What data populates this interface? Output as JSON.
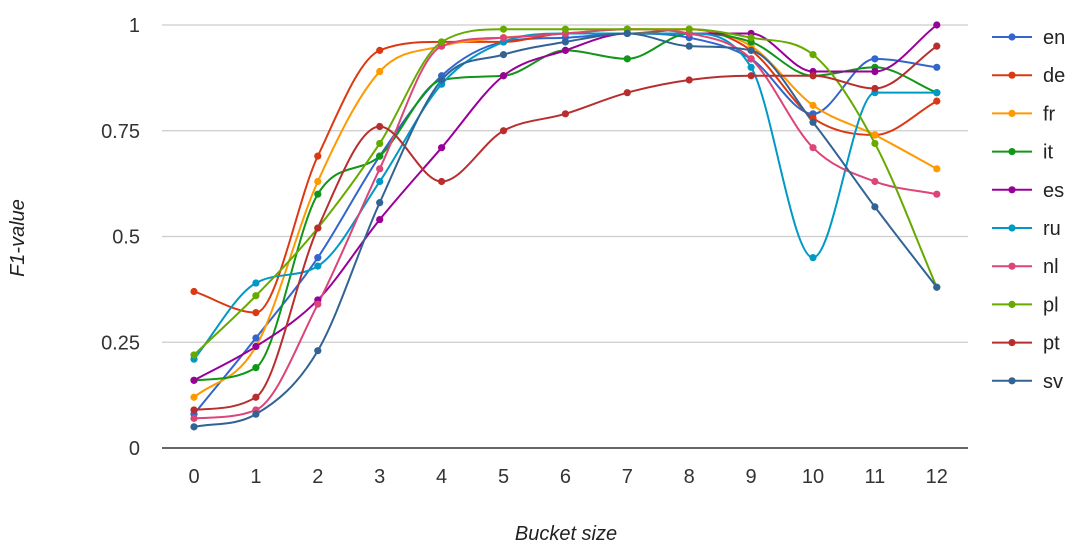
{
  "chart_data": {
    "type": "line",
    "title": "",
    "xlabel": "Bucket size",
    "ylabel": "F1-value",
    "x": [
      0,
      1,
      2,
      3,
      4,
      5,
      6,
      7,
      8,
      9,
      10,
      11,
      12
    ],
    "x_tick_labels": [
      "0",
      "1",
      "2",
      "3",
      "4",
      "5",
      "6",
      "7",
      "8",
      "9",
      "10",
      "11",
      "12"
    ],
    "y_ticks": [
      0,
      0.25,
      0.5,
      0.75,
      1
    ],
    "y_tick_labels": [
      "0",
      "0.25",
      "0.5",
      "0.75",
      "1"
    ],
    "ylim": [
      0,
      1
    ],
    "grid": true,
    "legend_position": "right",
    "series": [
      {
        "name": "en",
        "color": "#3366cc",
        "values": [
          0.08,
          0.26,
          0.45,
          0.69,
          0.88,
          0.96,
          0.97,
          0.98,
          0.97,
          0.92,
          0.79,
          0.92,
          0.9
        ]
      },
      {
        "name": "de",
        "color": "#dc3912",
        "values": [
          0.37,
          0.32,
          0.69,
          0.94,
          0.96,
          0.96,
          0.98,
          0.98,
          0.99,
          0.94,
          0.78,
          0.74,
          0.82
        ]
      },
      {
        "name": "fr",
        "color": "#ff9900",
        "values": [
          0.12,
          0.24,
          0.63,
          0.89,
          0.95,
          0.97,
          0.98,
          0.99,
          0.99,
          0.95,
          0.81,
          0.74,
          0.66
        ]
      },
      {
        "name": "it",
        "color": "#109618",
        "values": [
          0.16,
          0.19,
          0.6,
          0.69,
          0.87,
          0.88,
          0.94,
          0.92,
          0.98,
          0.96,
          0.88,
          0.9,
          0.84
        ]
      },
      {
        "name": "es",
        "color": "#990099",
        "values": [
          0.16,
          0.24,
          0.35,
          0.54,
          0.71,
          0.88,
          0.94,
          0.98,
          0.98,
          0.98,
          0.89,
          0.89,
          1.0
        ]
      },
      {
        "name": "ru",
        "color": "#0099c6",
        "values": [
          0.21,
          0.39,
          0.43,
          0.63,
          0.86,
          0.96,
          0.98,
          0.98,
          0.98,
          0.9,
          0.45,
          0.84,
          0.84
        ]
      },
      {
        "name": "nl",
        "color": "#dd4477",
        "values": [
          0.07,
          0.09,
          0.34,
          0.66,
          0.95,
          0.97,
          0.98,
          0.99,
          0.98,
          0.92,
          0.71,
          0.63,
          0.6
        ]
      },
      {
        "name": "pl",
        "color": "#66aa00",
        "values": [
          0.22,
          0.36,
          0.52,
          0.72,
          0.96,
          0.99,
          0.99,
          0.99,
          0.99,
          0.97,
          0.93,
          0.72,
          0.38
        ]
      },
      {
        "name": "pt",
        "color": "#b82e2e",
        "values": [
          0.09,
          0.12,
          0.52,
          0.76,
          0.63,
          0.75,
          0.79,
          0.84,
          0.87,
          0.88,
          0.88,
          0.85,
          0.95
        ]
      },
      {
        "name": "sv",
        "color": "#316395",
        "values": [
          0.05,
          0.08,
          0.23,
          0.58,
          0.87,
          0.93,
          0.96,
          0.98,
          0.95,
          0.94,
          0.77,
          0.57,
          0.38
        ]
      }
    ]
  }
}
